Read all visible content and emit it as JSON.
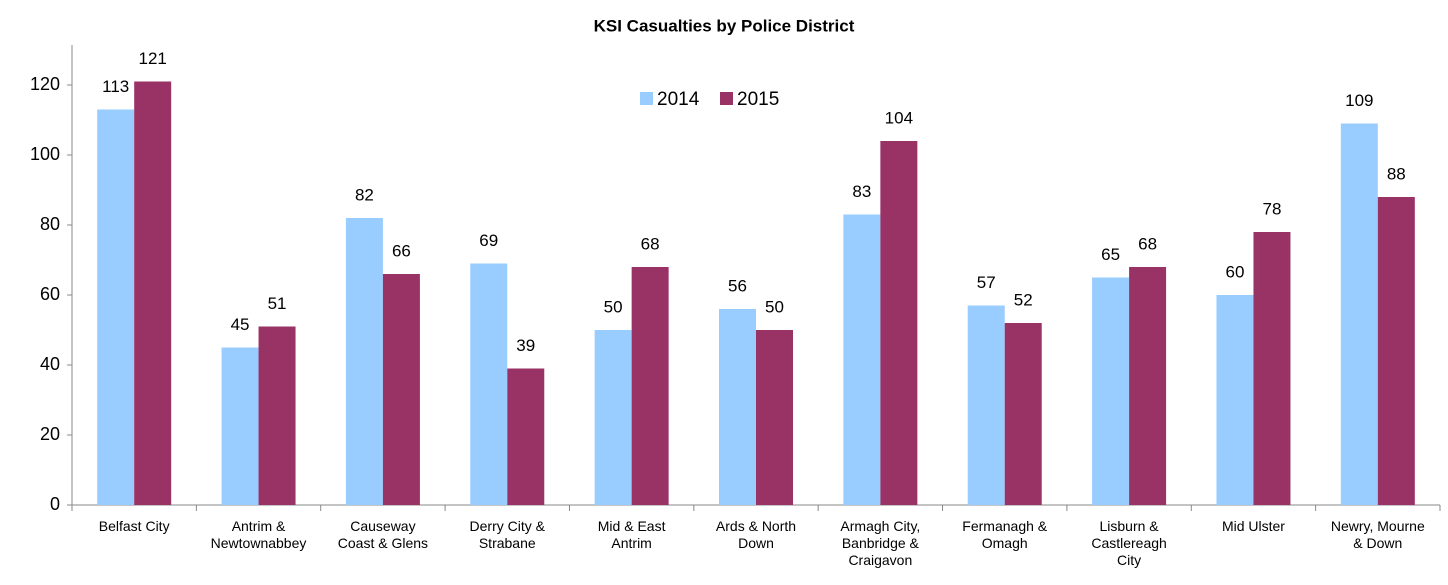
{
  "chart_data": {
    "type": "bar",
    "title": "KSI Casualties by Police District",
    "categories": [
      "Belfast City",
      "Antrim &\nNewtownabbey",
      "Causeway\nCoast & Glens",
      "Derry City &\nStrabane",
      "Mid & East\nAntrim",
      "Ards & North\nDown",
      "Armagh City,\nBanbridge &\nCraigavon",
      "Fermanagh &\nOmagh",
      "Lisburn &\nCastlereagh\nCity",
      "Mid Ulster",
      "Newry, Mourne\n& Down"
    ],
    "series": [
      {
        "name": "2014",
        "color": "#99ccff",
        "values": [
          113,
          45,
          82,
          69,
          50,
          56,
          83,
          57,
          65,
          60,
          109
        ]
      },
      {
        "name": "2015",
        "color": "#993366",
        "values": [
          121,
          51,
          66,
          39,
          68,
          50,
          104,
          52,
          68,
          78,
          88
        ]
      }
    ],
    "ylim": [
      0,
      130
    ],
    "yticks": [
      0,
      20,
      40,
      60,
      80,
      100,
      120
    ],
    "grid": false,
    "legend": "top"
  }
}
